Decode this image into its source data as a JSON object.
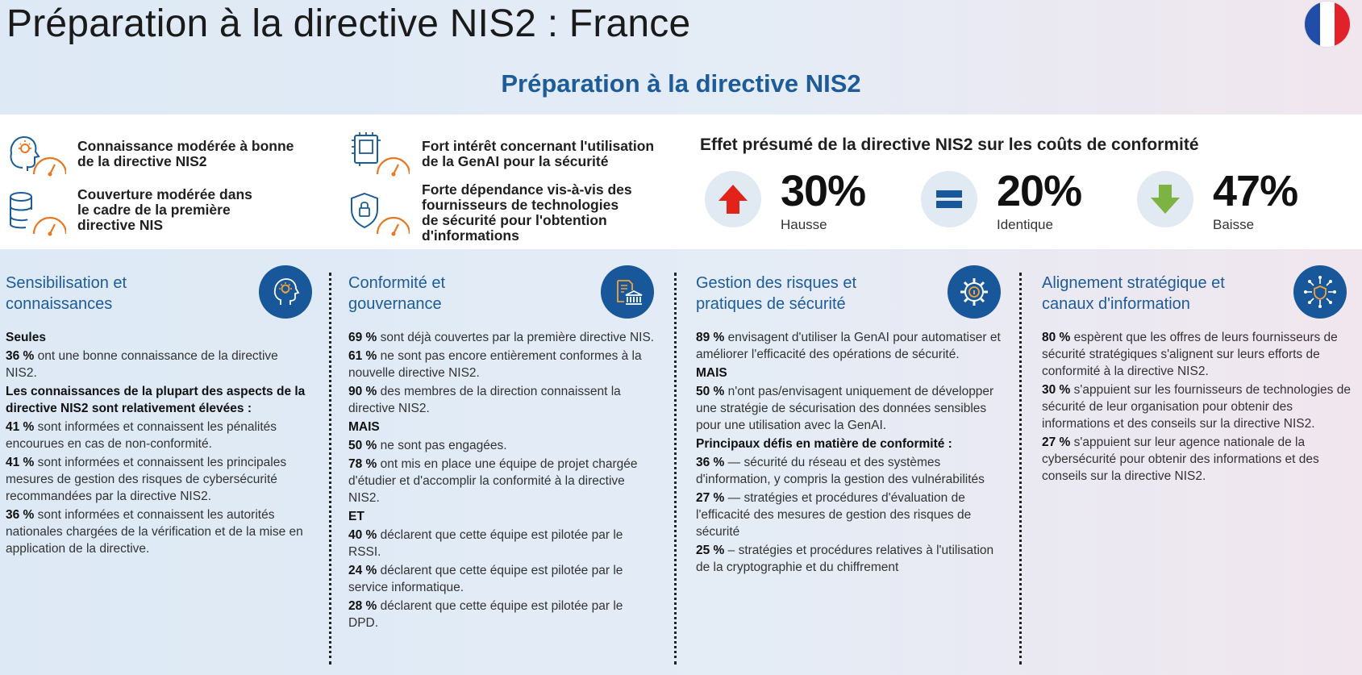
{
  "header": {
    "title": "Préparation à la directive NIS2 : France",
    "subtitle": "Préparation à la directive NIS2",
    "flag_colors": [
      "#1f4da8",
      "#ffffff",
      "#e1222b"
    ]
  },
  "kpis": [
    {
      "icon": "head-gauge-icon",
      "text_lines": [
        "Connaissance modérée à bonne",
        "de la directive NIS2"
      ]
    },
    {
      "icon": "database-gauge-icon",
      "text_lines": [
        "Couverture modérée dans",
        "le cadre de la première",
        "directive NIS"
      ]
    },
    {
      "icon": "chip-gauge-icon",
      "text_lines": [
        "Fort intérêt concernant l'utilisation",
        "de la GenAI pour la sécurité"
      ]
    },
    {
      "icon": "shield-lock-gauge-icon",
      "text_lines": [
        "Forte dépendance vis-à-vis des",
        "fournisseurs de technologies",
        "de sécurité pour l'obtention",
        "d'informations"
      ]
    }
  ],
  "effects": {
    "title": "Effet présumé de la directive NIS2 sur les coûts de conformité",
    "items": [
      {
        "icon": "arrow-up-icon",
        "value": "30%",
        "label": "Hausse",
        "color": "#e2231a"
      },
      {
        "icon": "equals-icon",
        "value": "20%",
        "label": "Identique",
        "color": "#17579a"
      },
      {
        "icon": "arrow-down-icon",
        "value": "47%",
        "label": "Baisse",
        "color": "#7cb342"
      }
    ]
  },
  "columns": [
    {
      "title_lines": [
        "Sensibilisation et",
        "connaissances"
      ],
      "icon": "head-lightbulb-icon",
      "items": [
        {
          "bold": "Seules",
          "text": ""
        },
        {
          "bold": "36 %",
          "text": " ont une bonne connaissance de la directive NIS2."
        },
        {
          "bold": "Les connaissances de la plupart des aspects de la directive NIS2 sont relativement élevées :",
          "text": ""
        },
        {
          "bold": "41 %",
          "text": " sont informées et connaissent les pénalités encourues en cas de non-conformité."
        },
        {
          "bold": "41 %",
          "text": " sont informées et connaissent les principales mesures de gestion des risques de cybersécurité recommandées par la directive NIS2."
        },
        {
          "bold": "36 %",
          "text": " sont informées et connaissent les autorités nationales chargées de la vérification et de la mise en application de la directive."
        }
      ]
    },
    {
      "title_lines": [
        "Conformité et",
        "gouvernance"
      ],
      "icon": "document-building-icon",
      "items": [
        {
          "bold": "69 %",
          "text": " sont déjà couvertes par la première directive NIS."
        },
        {
          "bold": "61 %",
          "text": " ne sont pas encore entièrement conformes à la nouvelle directive NIS2."
        },
        {
          "bold": "90 %",
          "text": " des membres de la direction connaissent la directive NIS2."
        },
        {
          "bold": "MAIS",
          "text": ""
        },
        {
          "bold": "50 %",
          "text": " ne sont pas engagées."
        },
        {
          "bold": "78 %",
          "text": " ont mis en place une équipe de projet chargée d'étudier et d'accomplir la conformité à la directive NIS2."
        },
        {
          "bold": "ET",
          "text": ""
        },
        {
          "bold": "40 %",
          "text": " déclarent que cette équipe est pilotée par le RSSI."
        },
        {
          "bold": "24 %",
          "text": " déclarent que cette équipe est pilotée par le service informatique."
        },
        {
          "bold": "28 %",
          "text": " déclarent que cette équipe est pilotée par le DPD."
        }
      ]
    },
    {
      "title_lines": [
        "Gestion des risques et",
        "pratiques de sécurité"
      ],
      "icon": "gear-lock-icon",
      "items": [
        {
          "bold": "89 %",
          "text": " envisagent d'utiliser la GenAI pour automatiser et améliorer l'efficacité des opérations de sécurité."
        },
        {
          "bold": "MAIS",
          "text": ""
        },
        {
          "bold": "50 %",
          "text": " n'ont pas/envisagent uniquement de développer une stratégie de sécurisation des données sensibles pour une utilisation avec la GenAI."
        },
        {
          "bold": "Principaux défis en matière de conformité :",
          "text": ""
        },
        {
          "bold": "36 %",
          "text": " — sécurité du réseau et des systèmes d'information, y compris la gestion des vulnérabilités"
        },
        {
          "bold": "27 %",
          "text": " — stratégies et procédures d'évaluation de l'efficacité des mesures de gestion des risques de sécurité"
        },
        {
          "bold": "25 %",
          "text": " – stratégies et procédures relatives à l'utilisation de la cryptographie et du chiffrement"
        }
      ]
    },
    {
      "title_lines": [
        "Alignement stratégique et",
        "canaux d'information"
      ],
      "icon": "network-shield-icon",
      "items": [
        {
          "bold": "80 %",
          "text": " espèrent que les offres de leurs fournisseurs de sécurité stratégiques s'alignent sur leurs efforts de conformité à la directive NIS2."
        },
        {
          "bold": "30 %",
          "text": " s'appuient sur les fournisseurs de technologies de sécurité de leur organisation pour obtenir des informations et des conseils sur la directive NIS2."
        },
        {
          "bold": "27 %",
          "text": " s'appuient sur leur agence nationale de la cybersécurité pour obtenir des informations et des conseils sur la directive NIS2."
        }
      ]
    }
  ]
}
